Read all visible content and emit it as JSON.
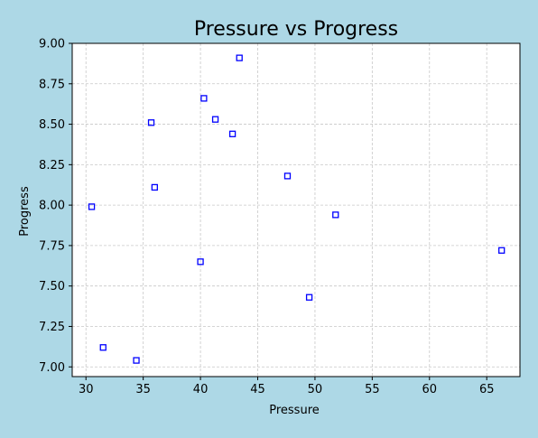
{
  "chart_data": {
    "type": "scatter",
    "title": "Pressure vs Progress",
    "xlabel": "Pressure",
    "ylabel": "Progress",
    "xlim": [
      28.8,
      67.9
    ],
    "ylim": [
      6.94,
      9.0
    ],
    "xticks": [
      30,
      35,
      40,
      45,
      50,
      55,
      60,
      65
    ],
    "yticks": [
      7.0,
      7.25,
      7.5,
      7.75,
      8.0,
      8.25,
      8.5,
      8.75,
      9.0
    ],
    "grid": true,
    "marker": "square-hollow",
    "marker_color": "#0000ff",
    "background_color": "#add8e6",
    "plot_background": "#ffffff",
    "points": [
      {
        "x": 30.5,
        "y": 7.99
      },
      {
        "x": 31.5,
        "y": 7.12
      },
      {
        "x": 34.4,
        "y": 7.04
      },
      {
        "x": 35.7,
        "y": 8.51
      },
      {
        "x": 36.0,
        "y": 8.11
      },
      {
        "x": 40.0,
        "y": 7.65
      },
      {
        "x": 40.3,
        "y": 8.66
      },
      {
        "x": 41.3,
        "y": 8.53
      },
      {
        "x": 42.8,
        "y": 8.44
      },
      {
        "x": 43.4,
        "y": 8.91
      },
      {
        "x": 47.6,
        "y": 8.18
      },
      {
        "x": 49.5,
        "y": 7.43
      },
      {
        "x": 51.8,
        "y": 7.94
      },
      {
        "x": 66.3,
        "y": 7.72
      }
    ]
  }
}
